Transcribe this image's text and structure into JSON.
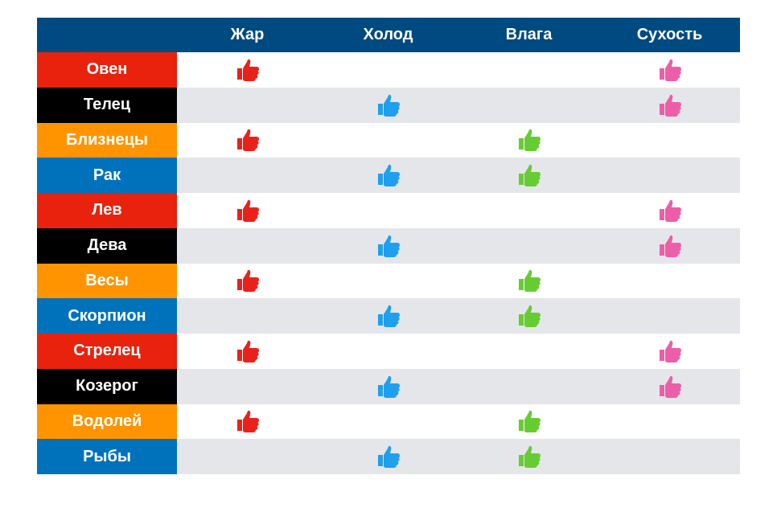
{
  "columns": [
    {
      "label": "Жар",
      "color": "#e8221a"
    },
    {
      "label": "Холод",
      "color": "#1ea0ee"
    },
    {
      "label": "Влага",
      "color": "#66cc33"
    },
    {
      "label": "Сухость",
      "color": "#ec5fa8"
    }
  ],
  "icon": "thumbs-up-icon",
  "header_color": "#004a82",
  "rows": [
    {
      "label": "Овен",
      "bg": "#e8220c",
      "marks": [
        true,
        false,
        false,
        true
      ]
    },
    {
      "label": "Телец",
      "bg": "#000000",
      "marks": [
        false,
        true,
        false,
        true
      ]
    },
    {
      "label": "Близнецы",
      "bg": "#ff9400",
      "marks": [
        true,
        false,
        true,
        false
      ]
    },
    {
      "label": "Рак",
      "bg": "#0072bc",
      "marks": [
        false,
        true,
        true,
        false
      ]
    },
    {
      "label": "Лев",
      "bg": "#e8220c",
      "marks": [
        true,
        false,
        false,
        true
      ]
    },
    {
      "label": "Дева",
      "bg": "#000000",
      "marks": [
        false,
        true,
        false,
        true
      ]
    },
    {
      "label": "Весы",
      "bg": "#ff9400",
      "marks": [
        true,
        false,
        true,
        false
      ]
    },
    {
      "label": "Скорпион",
      "bg": "#0072bc",
      "marks": [
        false,
        true,
        true,
        false
      ]
    },
    {
      "label": "Стрелец",
      "bg": "#e8220c",
      "marks": [
        true,
        false,
        false,
        true
      ]
    },
    {
      "label": "Козерог",
      "bg": "#000000",
      "marks": [
        false,
        true,
        false,
        true
      ]
    },
    {
      "label": "Водолей",
      "bg": "#ff9400",
      "marks": [
        true,
        false,
        true,
        false
      ]
    },
    {
      "label": "Рыбы",
      "bg": "#0072bc",
      "marks": [
        false,
        true,
        true,
        false
      ]
    }
  ]
}
